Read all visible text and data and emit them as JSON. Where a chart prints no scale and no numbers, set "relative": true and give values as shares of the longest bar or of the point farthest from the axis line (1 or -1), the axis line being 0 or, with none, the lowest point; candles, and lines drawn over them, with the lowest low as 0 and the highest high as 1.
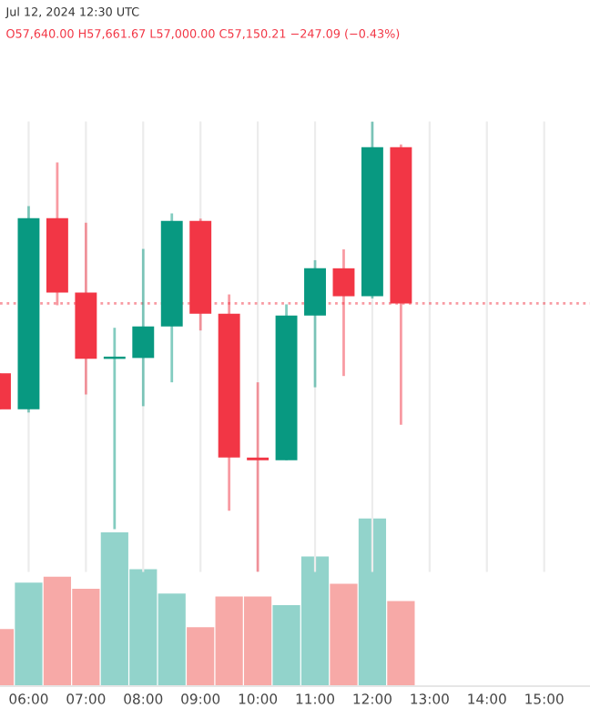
{
  "chart_data": [
    {
      "type": "candlestick",
      "relative": true,
      "annotations": [
        "Jul 12, 2024 12:30 UTC",
        "O57,640.00 H57,661.67 L57,000.00 C57,150.21 −247.09 (−0.43%)"
      ],
      "x": [
        5.5,
        6,
        6.5,
        7,
        7.5,
        8,
        8.5,
        9,
        9.5,
        10,
        10.5,
        11,
        11.5,
        12,
        12.5
      ],
      "xlim": [
        5.5,
        15.8
      ],
      "xticks": [
        {
          "value": 6,
          "label": "06:00"
        },
        {
          "value": 7,
          "label": "07:00"
        },
        {
          "value": 8,
          "label": "08:00"
        },
        {
          "value": 9,
          "label": "09:00"
        },
        {
          "value": 10,
          "label": "10:00"
        },
        {
          "value": 11,
          "label": "11:00"
        },
        {
          "value": 12,
          "label": "12:00"
        },
        {
          "value": 13,
          "label": "13:00"
        },
        {
          "value": 14,
          "label": "14:00"
        },
        {
          "value": 15,
          "label": "15:00"
        }
      ],
      "ohlc": [
        [
          0.441,
          0.441,
          0.361,
          0.361
        ],
        [
          0.361,
          0.812,
          0.354,
          0.785
        ],
        [
          0.785,
          0.909,
          0.592,
          0.62
        ],
        [
          0.62,
          0.775,
          0.394,
          0.473
        ],
        [
          0.473,
          0.542,
          0.095,
          0.478
        ],
        [
          0.475,
          0.717,
          0.368,
          0.545
        ],
        [
          0.545,
          0.796,
          0.421,
          0.779
        ],
        [
          0.779,
          0.784,
          0.536,
          0.573
        ],
        [
          0.573,
          0.616,
          0.136,
          0.254
        ],
        [
          0.254,
          0.421,
          0.0,
          0.248
        ],
        [
          0.248,
          0.594,
          0.248,
          0.569
        ],
        [
          0.569,
          0.692,
          0.41,
          0.674
        ],
        [
          0.674,
          0.716,
          0.435,
          0.612
        ],
        [
          0.612,
          1.0,
          0.607,
          0.943
        ],
        [
          0.943,
          0.949,
          0.327,
          0.596
        ]
      ],
      "colors": [
        "#f23645",
        "#089981",
        "#f23645",
        "#f23645",
        "#089981",
        "#089981",
        "#089981",
        "#f23645",
        "#f23645",
        "#f23645",
        "#089981",
        "#089981",
        "#f23645",
        "#089981",
        "#f23645"
      ],
      "ref_lines": [
        {
          "axis": "y",
          "value": 0.596,
          "color": "#f23645",
          "line_style": "dotted"
        }
      ],
      "grid": "x"
    },
    {
      "type": "bar",
      "relative": true,
      "tick_labels": false,
      "x": [
        5.5,
        6,
        6.5,
        7,
        7.5,
        8,
        8.5,
        9,
        9.5,
        10,
        10.5,
        11,
        11.5,
        12,
        12.5
      ],
      "xlim": [
        5.5,
        15.8
      ],
      "values": [
        0.34,
        0.616,
        0.652,
        0.58,
        0.916,
        0.696,
        0.551,
        0.351,
        0.533,
        0.533,
        0.482,
        0.772,
        0.609,
        1.0,
        0.507
      ],
      "colors": [
        "#f7a9a7",
        "#92d3cb",
        "#f7a9a7",
        "#f7a9a7",
        "#92d3cb",
        "#92d3cb",
        "#92d3cb",
        "#f7a9a7",
        "#f7a9a7",
        "#f7a9a7",
        "#92d3cb",
        "#92d3cb",
        "#f7a9a7",
        "#92d3cb",
        "#f7a9a7"
      ]
    }
  ]
}
